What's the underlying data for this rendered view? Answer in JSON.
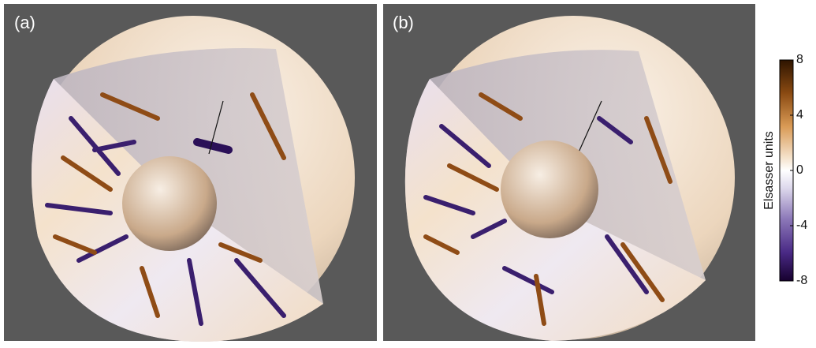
{
  "panels": [
    {
      "label": "(a)"
    },
    {
      "label": "(b)"
    }
  ],
  "colorbar": {
    "label": "Elsasser units",
    "lim": [
      -8,
      8
    ],
    "ticks": [
      -8,
      -4,
      0,
      4,
      8
    ]
  }
}
